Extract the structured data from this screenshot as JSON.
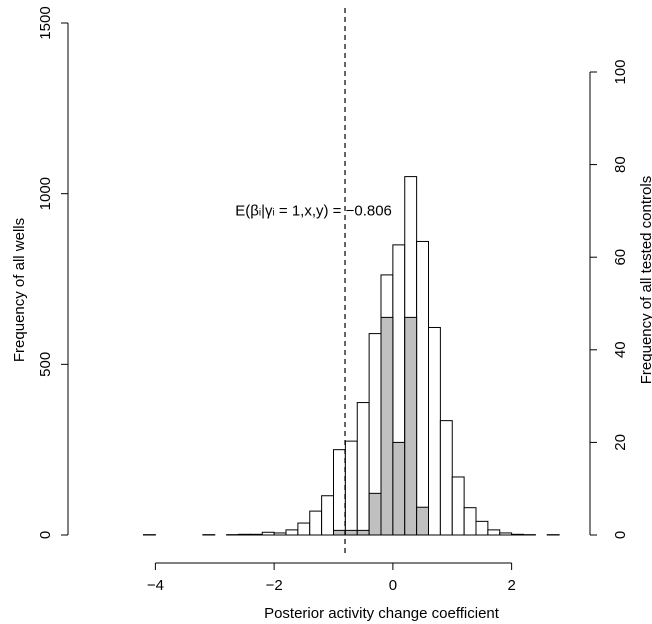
{
  "chart_data": {
    "type": "bar",
    "title": "",
    "xlabel": "Posterior activity change coefficient",
    "ylabel": "Frequency of all wells",
    "y2label": "Frequency of all tested controls",
    "xlim": [
      -5,
      3
    ],
    "ylim": [
      0,
      1500
    ],
    "y2lim": [
      0,
      100
    ],
    "x_ticks": [
      -4,
      -2,
      0,
      2
    ],
    "y_ticks": [
      0,
      500,
      1000,
      1500
    ],
    "y2_ticks": [
      0,
      20,
      40,
      60,
      80,
      100
    ],
    "bin_width": 0.2,
    "series": [
      {
        "name": "",
        "fill": "#ffffff",
        "bins": [
          {
            "x0": -4.2,
            "value": 1
          },
          {
            "x0": -4.0,
            "value": 0
          },
          {
            "x0": -3.8,
            "value": 0
          },
          {
            "x0": -3.6,
            "value": 0
          },
          {
            "x0": -3.4,
            "value": 0
          },
          {
            "x0": -3.2,
            "value": 1
          },
          {
            "x0": -3.0,
            "value": 0
          },
          {
            "x0": -2.8,
            "value": 1
          },
          {
            "x0": -2.6,
            "value": 2
          },
          {
            "x0": -2.4,
            "value": 2
          },
          {
            "x0": -2.2,
            "value": 8
          },
          {
            "x0": -2.0,
            "value": 6
          },
          {
            "x0": -1.8,
            "value": 15
          },
          {
            "x0": -1.6,
            "value": 35
          },
          {
            "x0": -1.4,
            "value": 70
          },
          {
            "x0": -1.2,
            "value": 115
          },
          {
            "x0": -1.0,
            "value": 250
          },
          {
            "x0": -0.8,
            "value": 275
          },
          {
            "x0": -0.6,
            "value": 388
          },
          {
            "x0": -0.4,
            "value": 590
          },
          {
            "x0": -0.2,
            "value": 762
          },
          {
            "x0": 0.0,
            "value": 850
          },
          {
            "x0": 0.2,
            "value": 1050
          },
          {
            "x0": 0.4,
            "value": 860
          },
          {
            "x0": 0.6,
            "value": 608
          },
          {
            "x0": 0.8,
            "value": 335
          },
          {
            "x0": 1.0,
            "value": 170
          },
          {
            "x0": 1.2,
            "value": 80
          },
          {
            "x0": 1.4,
            "value": 40
          },
          {
            "x0": 1.6,
            "value": 15
          },
          {
            "x0": 1.8,
            "value": 6
          },
          {
            "x0": 2.0,
            "value": 2
          },
          {
            "x0": 2.2,
            "value": 1
          },
          {
            "x0": 2.4,
            "value": 0
          },
          {
            "x0": 2.6,
            "value": 1
          }
        ]
      },
      {
        "name": "",
        "fill": "#c0c0c0",
        "axis": "right",
        "bins": [
          {
            "x0": -1.0,
            "value": 1
          },
          {
            "x0": -0.8,
            "value": 1
          },
          {
            "x0": -0.6,
            "value": 1
          },
          {
            "x0": -0.4,
            "value": 9
          },
          {
            "x0": -0.2,
            "value": 47
          },
          {
            "x0": 0.0,
            "value": 20
          },
          {
            "x0": 0.2,
            "value": 47
          },
          {
            "x0": 0.4,
            "value": 6
          }
        ]
      }
    ],
    "reference_line": {
      "x": -0.806,
      "style": "dashed"
    },
    "annotation": {
      "parts": [
        {
          "text": "E(β",
          "sub": false
        },
        {
          "text": "i",
          "sub": true
        },
        {
          "text": "|γ",
          "sub": false
        },
        {
          "text": "i",
          "sub": true
        },
        {
          "text": " = 1,x,y) = −0.806",
          "sub": false
        }
      ],
      "x": -1.1,
      "y": 950
    },
    "grid": false,
    "legend": "none"
  }
}
